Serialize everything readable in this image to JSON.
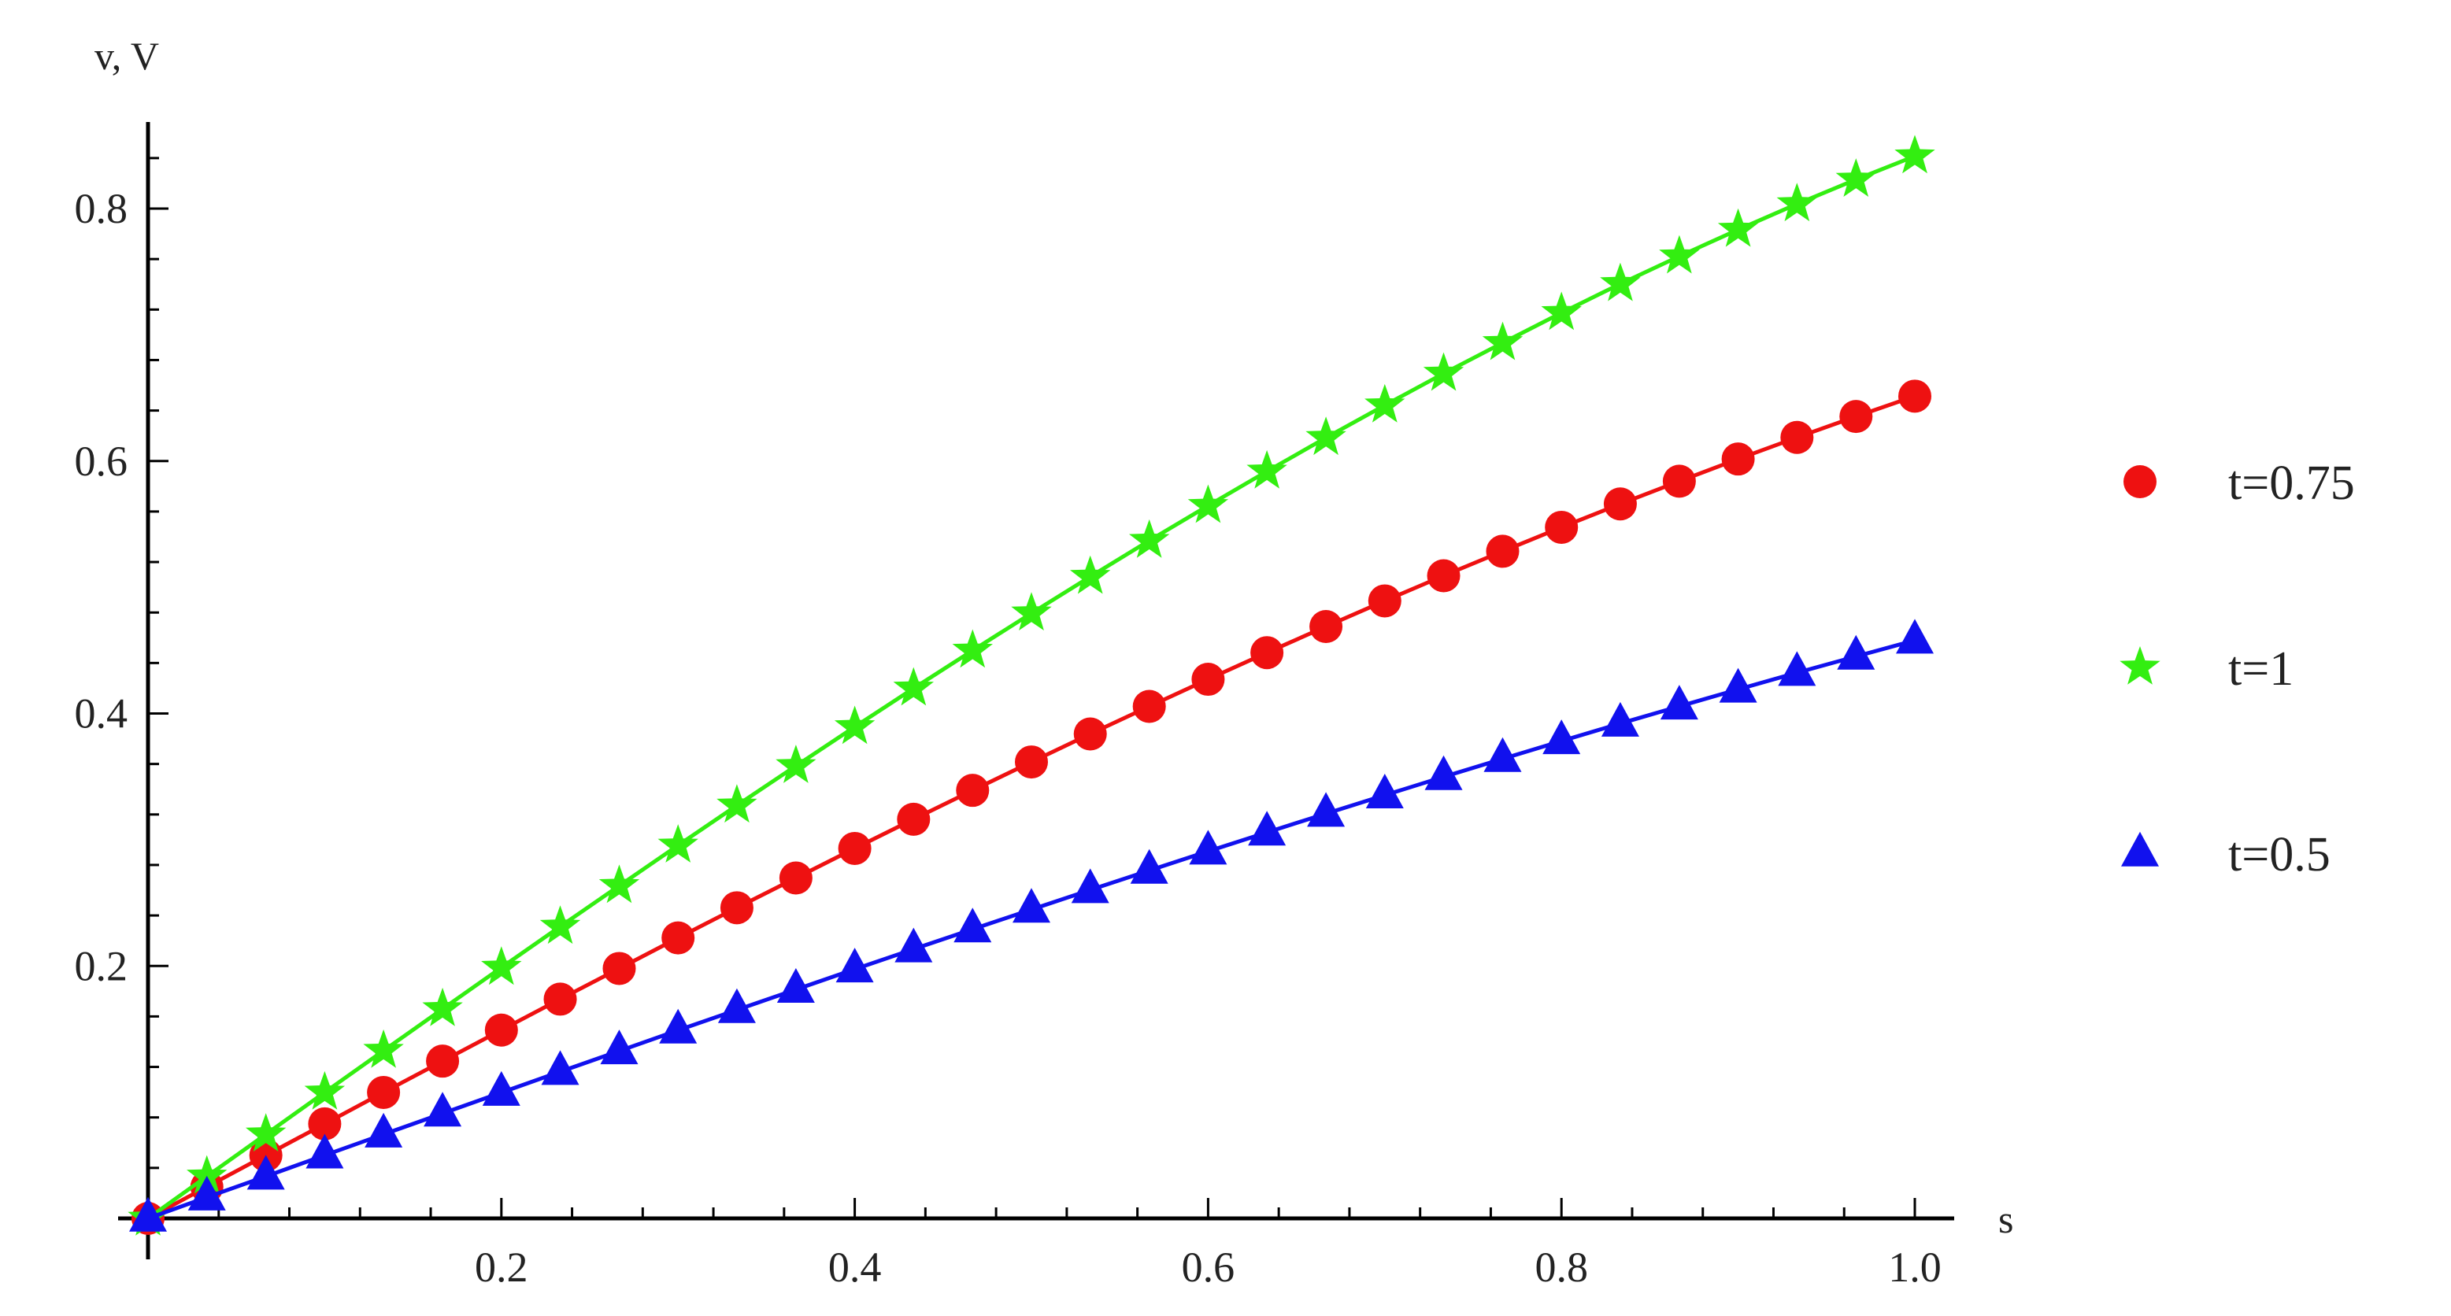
{
  "chart_data": {
    "type": "line",
    "title": "",
    "xlabel": "s",
    "ylabel": "v, V",
    "xlim": [
      0,
      1.0
    ],
    "ylim": [
      0,
      0.86
    ],
    "x_ticks": [
      0.2,
      0.4,
      0.6,
      0.8,
      1.0
    ],
    "x_tick_labels": [
      "0.2",
      "0.4",
      "0.6",
      "0.8",
      "1.0"
    ],
    "y_ticks": [
      0.2,
      0.4,
      0.6,
      0.8
    ],
    "y_tick_labels": [
      "0.2",
      "0.4",
      "0.6",
      "0.8"
    ],
    "grid": false,
    "legend_position": "right",
    "x": [
      0,
      0.0333,
      0.0667,
      0.1,
      0.1333,
      0.1667,
      0.2,
      0.2333,
      0.2667,
      0.3,
      0.3333,
      0.3667,
      0.4,
      0.4333,
      0.4667,
      0.5,
      0.5333,
      0.5667,
      0.6,
      0.6333,
      0.6667,
      0.7,
      0.7333,
      0.7667,
      0.8,
      0.8333,
      0.8667,
      0.9,
      0.9333,
      0.9667,
      1.0
    ],
    "series": [
      {
        "name": "t=0.75",
        "color": "#ee1111",
        "marker": "circle",
        "values": [
          0.0,
          0.025,
          0.05,
          0.0749,
          0.0998,
          0.1246,
          0.1492,
          0.1737,
          0.198,
          0.2222,
          0.2461,
          0.2697,
          0.2931,
          0.3162,
          0.3391,
          0.3616,
          0.3838,
          0.4056,
          0.4271,
          0.4482,
          0.4689,
          0.4892,
          0.5091,
          0.5285,
          0.5475,
          0.566,
          0.584,
          0.6016,
          0.6187,
          0.6353,
          0.6514
        ]
      },
      {
        "name": "t=1",
        "color": "#33ee11",
        "marker": "star",
        "values": [
          0.0,
          0.0333,
          0.0666,
          0.0998,
          0.1329,
          0.1659,
          0.1987,
          0.2312,
          0.2635,
          0.2955,
          0.3272,
          0.3585,
          0.3894,
          0.4199,
          0.4499,
          0.4794,
          0.5084,
          0.5369,
          0.5646,
          0.5918,
          0.6184,
          0.6442,
          0.6693,
          0.6936,
          0.7174,
          0.7403,
          0.7622,
          0.7833,
          0.8036,
          0.823,
          0.8415
        ]
      },
      {
        "name": "t=0.5",
        "color": "#1111ee",
        "marker": "triangle",
        "values": [
          0.0,
          0.0167,
          0.0333,
          0.05,
          0.0666,
          0.0832,
          0.0997,
          0.1162,
          0.1326,
          0.149,
          0.1652,
          0.1813,
          0.1974,
          0.2133,
          0.2291,
          0.2447,
          0.2602,
          0.2756,
          0.2908,
          0.3058,
          0.3207,
          0.3353,
          0.3498,
          0.3641,
          0.3782,
          0.3921,
          0.4057,
          0.4191,
          0.4323,
          0.4452,
          0.4579
        ]
      }
    ]
  },
  "legend": {
    "items": [
      {
        "label": "t=0.75",
        "color": "#ee1111",
        "marker": "circle"
      },
      {
        "label": "t=1",
        "color": "#33ee11",
        "marker": "star"
      },
      {
        "label": "t=0.5",
        "color": "#1111ee",
        "marker": "triangle"
      }
    ]
  }
}
